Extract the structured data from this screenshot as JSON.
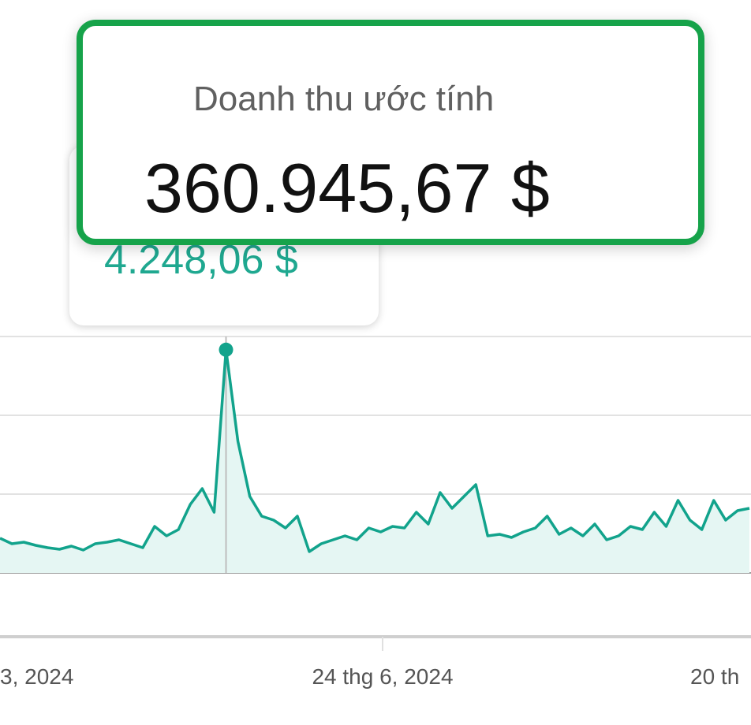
{
  "summary": {
    "title": "Doanh thu ước tính",
    "value": "360.945,67 $"
  },
  "tooltip": "4.248,06 $",
  "chart_data": {
    "type": "line",
    "color": "#12a38c",
    "fill": "#e5f6f3",
    "values": [
      660,
      555,
      585,
      525,
      480,
      450,
      510,
      435,
      555,
      585,
      630,
      555,
      480,
      885,
      705,
      825,
      1305,
      1605,
      1155,
      4248.06,
      2505,
      1455,
      1080,
      1005,
      855,
      1080,
      405,
      555,
      630,
      705,
      630,
      855,
      780,
      885,
      855,
      1155,
      930,
      1530,
      1230,
      1455,
      1680,
      705,
      735,
      675,
      780,
      855,
      1080,
      735,
      855,
      705,
      930,
      630,
      705,
      885,
      825,
      1155,
      885,
      1380,
      1005,
      825,
      1380,
      1005,
      1185,
      1230
    ],
    "ylim": [
      0,
      4500
    ],
    "yticks": [
      0,
      1500,
      3000,
      4500
    ],
    "grid": true,
    "x_tick_labels": [
      "3, 2024",
      "24 thg 6, 2024",
      "20 th"
    ]
  }
}
